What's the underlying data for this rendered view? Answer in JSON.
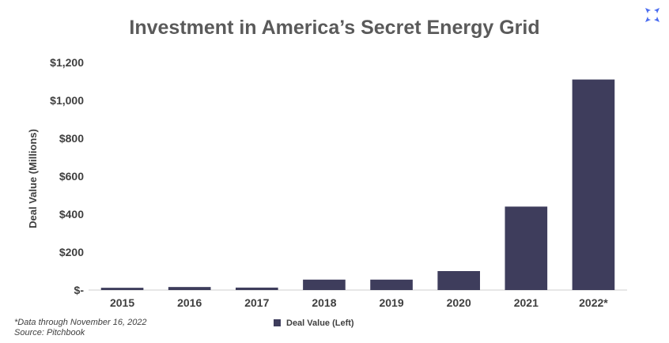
{
  "chart_data": {
    "type": "bar",
    "title": "Investment in America’s Secret Energy Grid",
    "ylabel": "Deal Value (Millions)",
    "xlabel": "",
    "categories": [
      "2015",
      "2016",
      "2017",
      "2018",
      "2019",
      "2020",
      "2021",
      "2022*"
    ],
    "series": [
      {
        "name": "Deal Value (Left)",
        "values": [
          12,
          16,
          13,
          55,
          55,
          100,
          440,
          1110
        ]
      }
    ],
    "ylim": [
      0,
      1200
    ],
    "yticks": [
      0,
      200,
      400,
      600,
      800,
      1000,
      1200
    ],
    "ytick_labels": [
      "$-",
      "$200",
      "$400",
      "$600",
      "$800",
      "$1,000",
      "$1,200"
    ],
    "grid": false,
    "legend_position": "bottom-center",
    "bar_color": "#3e3d5c",
    "footnote": "*Data through November 16, 2022",
    "source": "Source: Pitchbook",
    "logo": {
      "icon": "cross-petal-logo-icon",
      "color": "#4a6cf0"
    }
  }
}
